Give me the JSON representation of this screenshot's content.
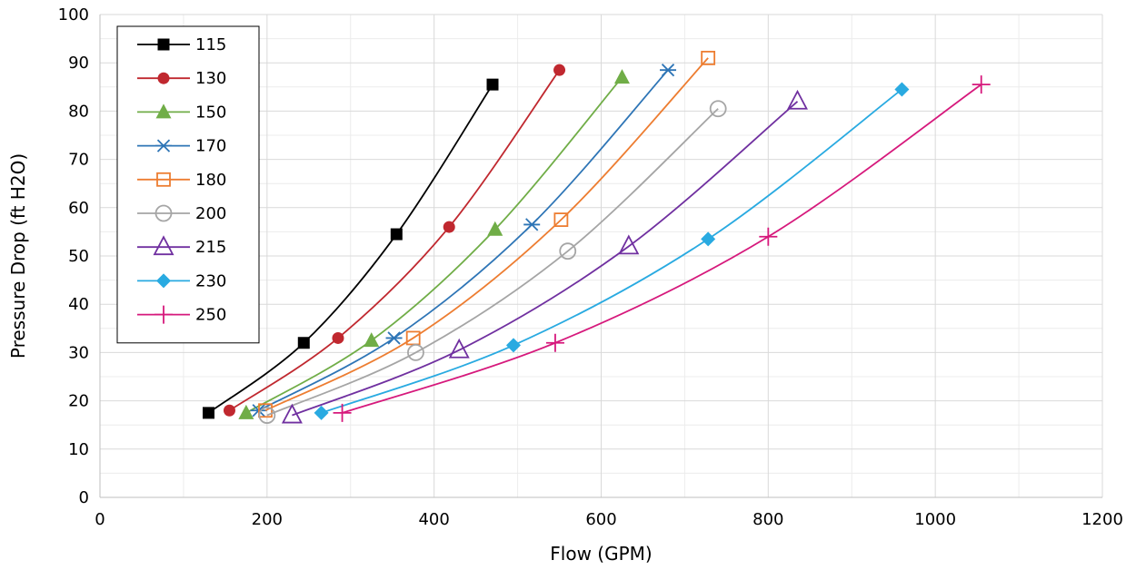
{
  "chart_data": {
    "type": "line",
    "xlabel": "Flow (GPM)",
    "ylabel": "Pressure Drop (ft H2O)",
    "xlim": [
      0,
      1200
    ],
    "ylim": [
      0,
      100
    ],
    "x_ticks": [
      0,
      200,
      400,
      600,
      800,
      1000,
      1200
    ],
    "y_ticks": [
      0,
      10,
      20,
      30,
      40,
      50,
      60,
      70,
      80,
      90,
      100
    ],
    "x_tick_labels": [
      "0",
      "200",
      "400",
      "600",
      "800",
      "1000",
      "1200"
    ],
    "y_tick_labels": [
      "0",
      "10",
      "20",
      "30",
      "40",
      "50",
      "60",
      "70",
      "80",
      "90",
      "100"
    ],
    "grid": true,
    "minor_grid": true,
    "legend_position": "top-left",
    "series": [
      {
        "name": "115",
        "color": "#000000",
        "marker": "filled-square",
        "points": [
          [
            130,
            17.5
          ],
          [
            244,
            32
          ],
          [
            355,
            54.5
          ],
          [
            470,
            85.5
          ]
        ]
      },
      {
        "name": "130",
        "color": "#c0282f",
        "marker": "filled-circle",
        "points": [
          [
            155,
            18
          ],
          [
            285,
            33
          ],
          [
            418,
            56
          ],
          [
            550,
            88.5
          ]
        ]
      },
      {
        "name": "150",
        "color": "#70ad47",
        "marker": "filled-triangle",
        "points": [
          [
            175,
            17.5
          ],
          [
            325,
            32.5
          ],
          [
            473,
            55.5
          ],
          [
            625,
            87
          ]
        ]
      },
      {
        "name": "170",
        "color": "#2e75b6",
        "marker": "asterisk",
        "points": [
          [
            190,
            18
          ],
          [
            352,
            33
          ],
          [
            517,
            56.5
          ],
          [
            680,
            88.5
          ]
        ]
      },
      {
        "name": "180",
        "color": "#ed7d31",
        "marker": "open-square",
        "points": [
          [
            198,
            18
          ],
          [
            375,
            33
          ],
          [
            552,
            57.5
          ],
          [
            728,
            91
          ]
        ]
      },
      {
        "name": "200",
        "color": "#a5a5a5",
        "marker": "open-circle",
        "points": [
          [
            200,
            17
          ],
          [
            378,
            30
          ],
          [
            560,
            51
          ],
          [
            740,
            80.5
          ]
        ]
      },
      {
        "name": "215",
        "color": "#7030a0",
        "marker": "open-triangle",
        "points": [
          [
            230,
            17
          ],
          [
            430,
            30.5
          ],
          [
            633,
            52
          ],
          [
            835,
            82
          ]
        ]
      },
      {
        "name": "230",
        "color": "#29aae1",
        "marker": "filled-diamond",
        "points": [
          [
            265,
            17.5
          ],
          [
            495,
            31.5
          ],
          [
            728,
            53.5
          ],
          [
            960,
            84.5
          ]
        ]
      },
      {
        "name": "250",
        "color": "#d6197c",
        "marker": "plus",
        "points": [
          [
            290,
            17.5
          ],
          [
            545,
            32
          ],
          [
            800,
            54
          ],
          [
            1055,
            85.5
          ]
        ]
      }
    ]
  }
}
